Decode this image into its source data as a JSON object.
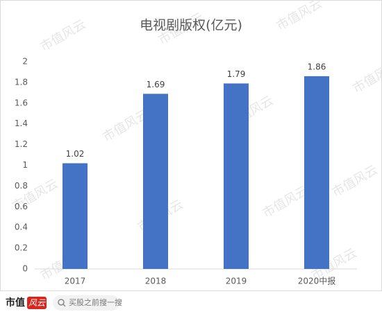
{
  "chart_data": {
    "type": "bar",
    "title": "电视剧版权(亿元)",
    "categories": [
      "2017",
      "2018",
      "2019",
      "2020中报"
    ],
    "values": [
      1.02,
      1.69,
      1.79,
      1.86
    ],
    "color": "#4472c4",
    "ylim": [
      0,
      2
    ],
    "yticks": [
      0,
      0.2,
      0.4,
      0.6,
      0.8,
      1,
      1.2,
      1.4,
      1.6,
      1.8,
      2
    ],
    "grid": false
  },
  "watermark": "市值风云",
  "footer": {
    "brand": "市值",
    "brand_badge": "风云",
    "search_placeholder": "买股之前搜一搜"
  }
}
